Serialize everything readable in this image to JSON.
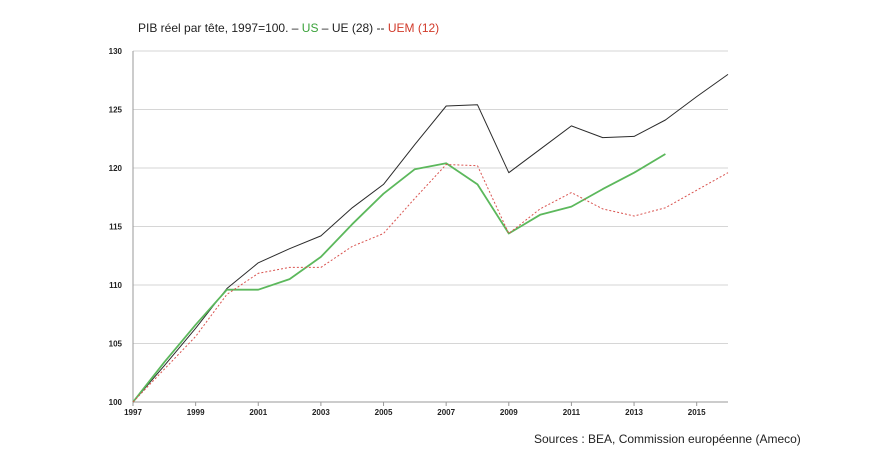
{
  "title": {
    "main": "PIB réel par tête, 1997=100.",
    "sep1": " – ",
    "us": "US",
    "sep2": " – ",
    "ue": "UE (28)",
    "sep3": " -- ",
    "uem": "UEM (12)"
  },
  "source": "Sources : BEA, Commission européenne (Ameco)",
  "colors": {
    "US": "#5cb85c",
    "UE (28)": "#2b2b2b",
    "UEM (12)": "#d9534f"
  },
  "chart_data": {
    "type": "line",
    "xlim": [
      1997,
      2016
    ],
    "ylim": [
      100,
      130
    ],
    "xticks": [
      "1997",
      "1999",
      "2001",
      "2003",
      "2005",
      "2007",
      "2009",
      "2011",
      "2013",
      "2015"
    ],
    "yticks": [
      "100",
      "105",
      "110",
      "115",
      "120",
      "125",
      "130"
    ],
    "grid": true,
    "legend": "title",
    "series": [
      {
        "name": "UE (28)",
        "style": "solid",
        "x": [
          1997,
          1998,
          1999,
          2000,
          2001,
          2002,
          2003,
          2004,
          2005,
          2006,
          2007,
          2008,
          2009,
          2010,
          2011,
          2012,
          2013,
          2014,
          2015,
          2016
        ],
        "y": [
          100,
          103.1,
          106.3,
          109.7,
          111.9,
          113.1,
          114.2,
          116.6,
          118.6,
          122.0,
          125.3,
          125.4,
          119.6,
          121.6,
          123.6,
          122.6,
          122.7,
          124.1,
          126.1,
          128.0
        ]
      },
      {
        "name": "US",
        "style": "solid-thick",
        "x": [
          1997,
          1998,
          1999,
          2000,
          2001,
          2002,
          2003,
          2004,
          2005,
          2006,
          2007,
          2008,
          2009,
          2010,
          2011,
          2012,
          2013,
          2014
        ],
        "y": [
          100,
          103.4,
          106.6,
          109.6,
          109.6,
          110.5,
          112.4,
          115.2,
          117.8,
          119.9,
          120.4,
          118.6,
          114.4,
          116.0,
          116.7,
          118.2,
          119.6,
          121.2
        ]
      },
      {
        "name": "UEM (12)",
        "style": "dotted",
        "x": [
          1997,
          1998,
          1999,
          2000,
          2001,
          2002,
          2003,
          2004,
          2005,
          2006,
          2007,
          2008,
          2009,
          2010,
          2011,
          2012,
          2013,
          2014,
          2015,
          2016
        ],
        "y": [
          100,
          102.8,
          105.6,
          109.2,
          111.0,
          111.5,
          111.5,
          113.3,
          114.4,
          117.4,
          120.3,
          120.2,
          114.4,
          116.5,
          117.9,
          116.5,
          115.9,
          116.6,
          118.1,
          119.6
        ]
      }
    ]
  }
}
